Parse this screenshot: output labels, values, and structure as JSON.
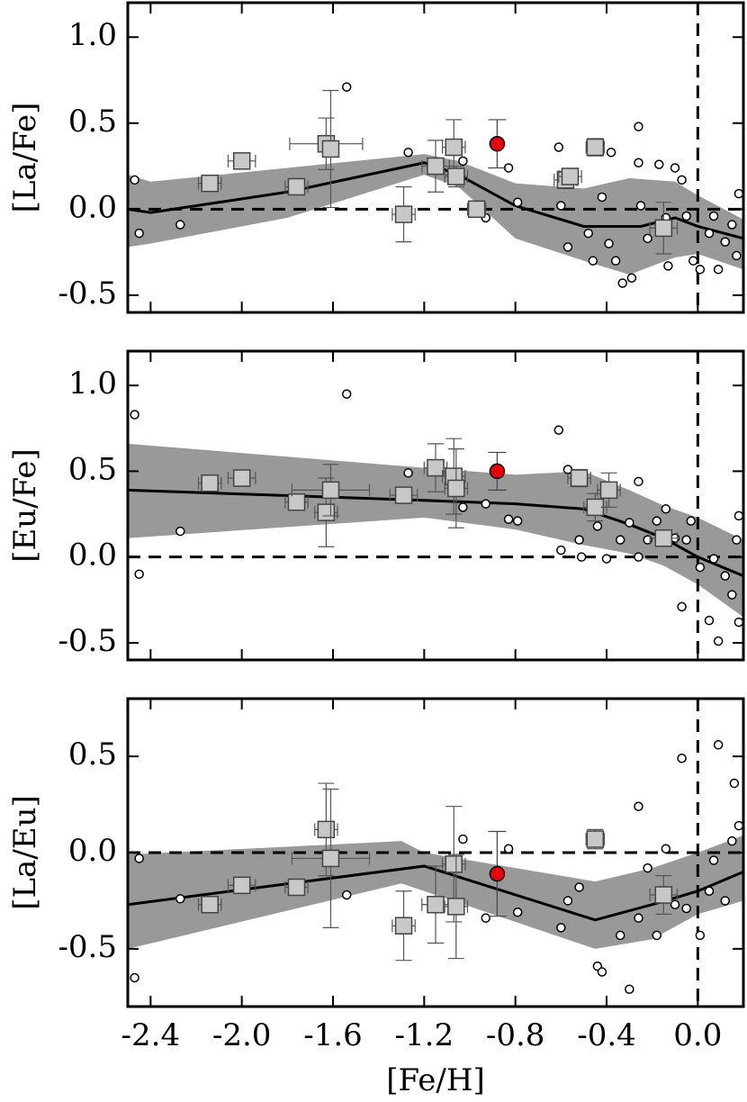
{
  "chart_data": [
    {
      "type": "scatter",
      "ylabel": "[La/Fe]",
      "ylim": [
        -0.6,
        1.2
      ],
      "yticks": [
        {
          "value": 1.0,
          "label": "1.0"
        },
        0.5,
        {
          "value": 0.0,
          "label": "0.0"
        },
        -0.5
      ],
      "hline": 0,
      "vline": 0,
      "colors": {
        "band": "#999999",
        "trend": "#000000",
        "star": "#ffffff",
        "cluster": "#c8c8c8",
        "target": "#e8000b"
      },
      "band": {
        "x": [
          -2.5,
          -2.4,
          -1.8,
          -1.2,
          -1.05,
          -0.8,
          -0.5,
          -0.3,
          -0.1,
          0.0,
          0.2
        ],
        "upper": [
          0.2,
          0.16,
          0.24,
          0.32,
          0.28,
          0.15,
          0.12,
          0.18,
          0.16,
          0.08,
          -0.06
        ],
        "lower": [
          -0.22,
          -0.2,
          -0.05,
          0.2,
          0.13,
          -0.17,
          -0.3,
          -0.38,
          -0.28,
          -0.26,
          -0.35
        ]
      },
      "trend": {
        "x": [
          -2.5,
          -2.4,
          -1.8,
          -1.2,
          -1.05,
          -0.8,
          -0.5,
          -0.25,
          -0.1,
          0.0,
          0.2
        ],
        "y": [
          0.0,
          -0.02,
          0.1,
          0.27,
          0.2,
          0.02,
          -0.1,
          -0.1,
          -0.05,
          -0.1,
          -0.17
        ]
      },
      "stars": {
        "x": [
          -2.47,
          -2.45,
          -2.27,
          -1.54,
          -1.27,
          -1.03,
          -0.93,
          -0.83,
          -0.79,
          -0.61,
          -0.6,
          -0.57,
          -0.48,
          -0.42,
          -0.39,
          -0.36,
          -0.33,
          -0.29,
          -0.26,
          -0.26,
          -0.25,
          -0.22,
          -0.17,
          -0.14,
          -0.13,
          -0.1,
          -0.07,
          -0.05,
          -0.02,
          0.01,
          0.05,
          0.07,
          0.09,
          0.12,
          0.15,
          0.17,
          0.18,
          -0.38,
          -0.46
        ],
        "y": [
          0.17,
          -0.14,
          -0.09,
          0.71,
          0.33,
          0.28,
          -0.05,
          0.24,
          0.04,
          0.36,
          0.02,
          -0.22,
          -0.14,
          0.07,
          -0.2,
          -0.3,
          -0.43,
          -0.4,
          0.48,
          0.27,
          0.02,
          -0.17,
          0.26,
          -0.05,
          -0.33,
          0.24,
          0.17,
          -0.04,
          -0.3,
          -0.35,
          -0.14,
          -0.04,
          -0.35,
          -0.19,
          -0.09,
          -0.27,
          0.09,
          0.33,
          -0.3
        ]
      },
      "clusters": {
        "x": [
          -2.14,
          -2.0,
          -1.76,
          -1.63,
          -1.61,
          -1.29,
          -1.15,
          -1.07,
          -1.06,
          -0.97,
          -0.58,
          -0.56,
          -0.45,
          -0.15
        ],
        "y": [
          0.15,
          0.28,
          0.13,
          0.38,
          0.35,
          -0.03,
          0.25,
          0.36,
          0.19,
          0.0,
          0.17,
          0.19,
          0.36,
          -0.11
        ],
        "xerr": [
          0.05,
          0.06,
          0.05,
          0.16,
          0.03,
          0.05,
          0.06,
          0.05,
          0.05,
          0.04,
          0.05,
          0.05,
          0.04,
          0.06
        ],
        "yerr": [
          0.03,
          0.02,
          0.02,
          0.15,
          0.34,
          0.16,
          0.15,
          0.16,
          0.06,
          0.02,
          0.05,
          0.04,
          0.05,
          0.15
        ]
      },
      "target": {
        "x": -0.88,
        "y": 0.38,
        "yerr": 0.14
      }
    },
    {
      "type": "scatter",
      "ylabel": "[Eu/Fe]",
      "ylim": [
        -0.6,
        1.2
      ],
      "yticks": [
        {
          "value": 1.0,
          "label": "1.0"
        },
        0.5,
        {
          "value": 0.0,
          "label": "0.0"
        },
        -0.5
      ],
      "hline": 0,
      "vline": 0,
      "colors": {
        "band": "#999999",
        "trend": "#000000",
        "star": "#ffffff",
        "cluster": "#c8c8c8",
        "target": "#e8000b"
      },
      "band": {
        "x": [
          -2.5,
          -1.2,
          -0.8,
          -0.5,
          -0.3,
          -0.15,
          0.0,
          0.2
        ],
        "upper": [
          0.66,
          0.52,
          0.48,
          0.5,
          0.39,
          0.3,
          0.23,
          0.1
        ],
        "lower": [
          0.11,
          0.23,
          0.16,
          0.07,
          0.02,
          -0.05,
          -0.16,
          -0.35
        ]
      },
      "trend": {
        "x": [
          -2.5,
          -1.2,
          -0.8,
          -0.5,
          -0.3,
          -0.15,
          0.0,
          0.2
        ],
        "y": [
          0.39,
          0.33,
          0.31,
          0.28,
          0.19,
          0.11,
          0.0,
          -0.11
        ]
      },
      "stars": {
        "x": [
          -2.47,
          -2.45,
          -2.27,
          -1.54,
          -1.27,
          -1.03,
          -0.93,
          -0.83,
          -0.79,
          -0.61,
          -0.6,
          -0.57,
          -0.52,
          -0.51,
          -0.44,
          -0.4,
          -0.34,
          -0.3,
          -0.26,
          -0.26,
          -0.22,
          -0.18,
          -0.14,
          -0.1,
          -0.07,
          -0.05,
          -0.03,
          0.01,
          0.05,
          0.07,
          0.09,
          0.12,
          0.15,
          0.17,
          0.18,
          0.18
        ],
        "y": [
          0.83,
          -0.1,
          0.15,
          0.95,
          0.49,
          0.29,
          0.31,
          0.22,
          0.21,
          0.74,
          0.04,
          0.51,
          0.1,
          0.0,
          0.18,
          -0.01,
          0.1,
          0.2,
          0.44,
          0.0,
          0.1,
          0.21,
          0.28,
          0.11,
          -0.29,
          0.1,
          0.21,
          -0.06,
          -0.37,
          -0.01,
          -0.49,
          -0.11,
          -0.22,
          0.1,
          -0.38,
          0.24
        ]
      },
      "clusters": {
        "x": [
          -2.14,
          -2.0,
          -1.76,
          -1.63,
          -1.61,
          -1.29,
          -1.15,
          -1.07,
          -1.06,
          -0.52,
          -0.45,
          -0.39,
          -0.15
        ],
        "y": [
          0.43,
          0.46,
          0.32,
          0.26,
          0.39,
          0.36,
          0.52,
          0.47,
          0.4,
          0.46,
          0.29,
          0.39,
          0.11
        ],
        "xerr": [
          0.05,
          0.06,
          0.05,
          0.05,
          0.17,
          0.06,
          0.05,
          0.05,
          0.05,
          0.05,
          0.05,
          0.05,
          0.06
        ],
        "yerr": [
          0.03,
          0.02,
          0.03,
          0.2,
          0.15,
          0.04,
          0.14,
          0.22,
          0.23,
          0.05,
          0.08,
          0.1,
          0.03
        ]
      },
      "target": {
        "x": -0.88,
        "y": 0.5,
        "yerr": 0.11
      }
    },
    {
      "type": "scatter",
      "ylabel": "[La/Eu]",
      "xlabel": "[Fe/H]",
      "ylim": [
        -0.8,
        0.8
      ],
      "xlim": [
        -2.5,
        0.2
      ],
      "yticks": [
        0.5,
        {
          "value": 0.0,
          "label": "0.0"
        },
        -0.5
      ],
      "xticks": [
        -2.4,
        {
          "value": -2.0,
          "label": "-2.0"
        },
        -1.6,
        -1.2,
        -0.8,
        -0.4,
        {
          "value": 0.0,
          "label": "0.0"
        }
      ],
      "hline": 0,
      "vline": 0,
      "colors": {
        "band": "#999999",
        "trend": "#000000",
        "star": "#ffffff",
        "cluster": "#c8c8c8",
        "target": "#e8000b"
      },
      "band": {
        "x": [
          -2.5,
          -1.3,
          -1.2,
          -0.45,
          -0.2,
          0.0,
          0.2
        ],
        "upper": [
          -0.01,
          0.06,
          0.0,
          -0.15,
          -0.08,
          0.0,
          0.09
        ],
        "lower": [
          -0.5,
          -0.16,
          -0.2,
          -0.5,
          -0.45,
          -0.32,
          -0.25
        ]
      },
      "trend": {
        "x": [
          -2.5,
          -1.2,
          -0.45,
          -0.2,
          0.0,
          0.2
        ],
        "y": [
          -0.27,
          -0.07,
          -0.35,
          -0.27,
          -0.2,
          -0.1
        ]
      },
      "stars": {
        "x": [
          -2.47,
          -2.45,
          -2.27,
          -1.54,
          -1.03,
          -0.93,
          -0.83,
          -0.79,
          -0.6,
          -0.57,
          -0.52,
          -0.44,
          -0.42,
          -0.34,
          -0.3,
          -0.26,
          -0.26,
          -0.22,
          -0.18,
          -0.14,
          -0.1,
          -0.07,
          -0.05,
          0.01,
          0.05,
          0.09,
          0.12,
          0.15,
          0.16,
          0.18,
          0.07
        ],
        "y": [
          -0.65,
          -0.03,
          -0.24,
          -0.22,
          0.07,
          -0.34,
          0.02,
          -0.31,
          -0.39,
          -0.25,
          -0.18,
          -0.59,
          -0.62,
          -0.43,
          -0.71,
          0.24,
          -0.34,
          -0.08,
          -0.43,
          0.02,
          -0.27,
          0.49,
          -0.29,
          -0.43,
          -0.2,
          0.56,
          -0.25,
          0.06,
          0.36,
          0.14,
          -0.04
        ]
      },
      "clusters": {
        "x": [
          -2.14,
          -2.0,
          -1.76,
          -1.63,
          -1.61,
          -1.29,
          -1.15,
          -1.07,
          -1.06,
          -0.45,
          -0.15
        ],
        "y": [
          -0.27,
          -0.17,
          -0.18,
          0.12,
          -0.03,
          -0.38,
          -0.27,
          -0.06,
          -0.28,
          0.07,
          -0.22
        ],
        "xerr": [
          0.05,
          0.06,
          0.05,
          0.05,
          0.17,
          0.05,
          0.06,
          0.05,
          0.05,
          0.04,
          0.06
        ],
        "yerr": [
          0.03,
          0.03,
          0.03,
          0.24,
          0.36,
          0.18,
          0.2,
          0.3,
          0.27,
          0.05,
          0.1
        ]
      },
      "target": {
        "x": -0.88,
        "y": -0.11,
        "yerr": 0.22
      }
    }
  ]
}
